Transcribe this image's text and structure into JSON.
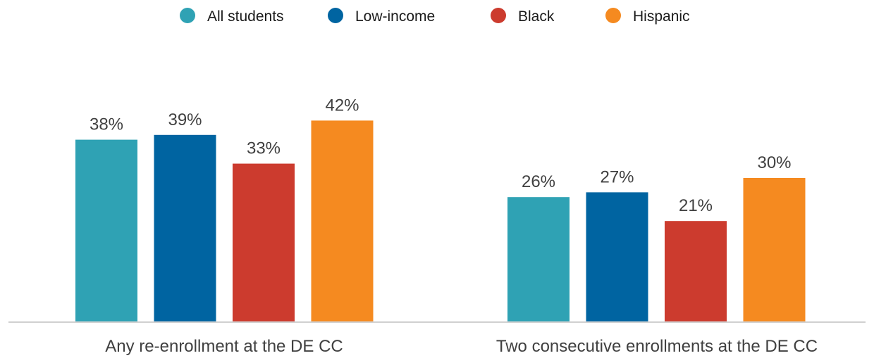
{
  "chart_data": {
    "type": "bar",
    "categories": [
      "Any re-enrollment at the DE CC",
      "Two consecutive enrollments at the DE CC"
    ],
    "series": [
      {
        "name": "All students",
        "values": [
          38,
          26
        ],
        "labels": [
          "38%",
          "26%"
        ],
        "color": "#2fa2b4"
      },
      {
        "name": "Low-income",
        "values": [
          39,
          27
        ],
        "labels": [
          "39%",
          "27%"
        ],
        "color": "#0064a1"
      },
      {
        "name": "Black",
        "values": [
          33,
          21
        ],
        "labels": [
          "33%",
          "21%"
        ],
        "color": "#cc3b2e"
      },
      {
        "name": "Hispanic",
        "values": [
          42,
          30
        ],
        "labels": [
          "42%",
          "30%"
        ],
        "color": "#f58a20"
      }
    ],
    "unit": "%",
    "ylim": [
      0,
      50
    ],
    "grid": false,
    "legend_position": "top-center",
    "axis_line_color": "#d0d0d0"
  }
}
